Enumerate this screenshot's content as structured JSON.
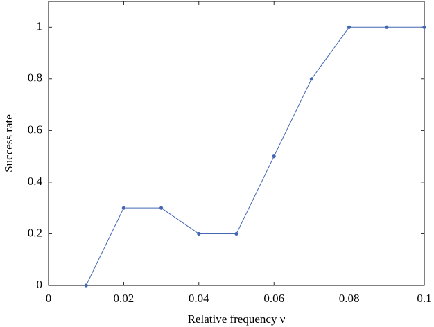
{
  "chart_data": {
    "type": "line",
    "xlabel": "Relative frequency ν",
    "ylabel": "Success rate",
    "x": [
      0.01,
      0.02,
      0.03,
      0.04,
      0.05,
      0.06,
      0.07,
      0.08,
      0.09,
      0.1
    ],
    "series": [
      {
        "name": "Success rate",
        "color": "#4467b4",
        "values": [
          0,
          0.3,
          0.3,
          0.2,
          0.2,
          0.5,
          0.8,
          1,
          1,
          1
        ]
      }
    ],
    "xlim": [
      0,
      0.1
    ],
    "xticks": [
      0,
      0.02,
      0.04,
      0.06,
      0.08,
      0.1
    ],
    "ylim": [
      0,
      1.1
    ],
    "yticks": [
      0,
      0.2,
      0.4,
      0.6,
      0.8,
      1
    ],
    "grid": false
  }
}
